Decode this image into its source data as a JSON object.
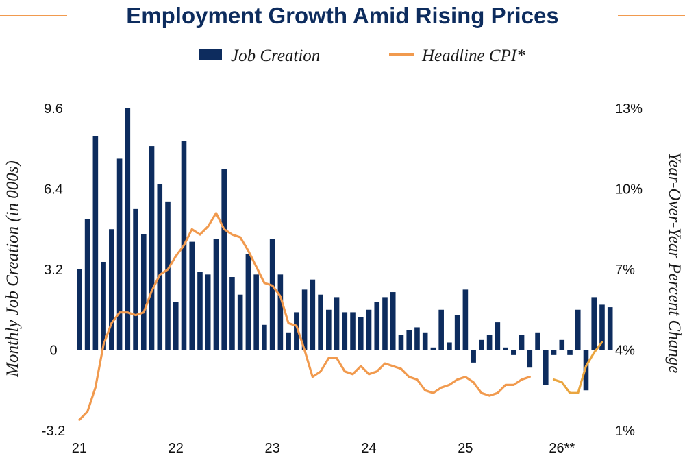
{
  "chart_data": {
    "type": "bar+line",
    "title": "Employment Growth Amid Rising Prices",
    "legend": {
      "placement": "top-center",
      "entries": [
        "Job Creation",
        "Headline CPI*"
      ]
    },
    "colors": {
      "bars": "#0d2c5e",
      "line": "#f19a4e",
      "line_forecast": "#eaa53f",
      "title": "#0d2c5e",
      "title_rule": "#f19a4e"
    },
    "ylabel_left": "Monthly Job Creation (in 000s)",
    "ylabel_right": "Year-Over-Year Percent Change",
    "y_left": {
      "ylim": [
        -3.2,
        9.6
      ],
      "ticks": [
        "9.6",
        "6.4",
        "3.2",
        "0",
        "-3.2"
      ],
      "tick_values": [
        9.6,
        6.4,
        3.2,
        0,
        -3.2
      ]
    },
    "y_right": {
      "ylim": [
        1,
        13
      ],
      "ticks": [
        "13%",
        "10%",
        "7%",
        "4%",
        "1%"
      ],
      "tick_values": [
        13,
        10,
        7,
        4,
        1
      ]
    },
    "x_ticks": {
      "labels": [
        "21",
        "22",
        "23",
        "24",
        "25",
        "26**"
      ],
      "month_index": [
        0,
        12,
        24,
        36,
        48,
        60
      ]
    },
    "grid": false,
    "job_creation": {
      "start_month_label": "21",
      "values": [
        3.2,
        5.2,
        8.5,
        3.5,
        4.8,
        7.6,
        9.6,
        5.6,
        4.6,
        8.1,
        6.6,
        5.9,
        1.9,
        8.3,
        4.3,
        3.1,
        3.0,
        4.4,
        7.2,
        2.9,
        2.2,
        3.8,
        3.0,
        1.0,
        4.4,
        3.0,
        0.7,
        1.5,
        2.4,
        2.8,
        2.2,
        1.6,
        2.1,
        1.5,
        1.5,
        1.3,
        1.6,
        1.9,
        2.1,
        2.3,
        0.6,
        0.8,
        0.9,
        0.7,
        0.1,
        1.6,
        0.3,
        1.4,
        2.4,
        -0.5,
        0.4,
        0.6,
        1.1,
        0.1,
        -0.2,
        0.6,
        -0.7,
        0.7,
        -1.4,
        -0.2,
        0.4,
        -0.2,
        1.6,
        -1.6,
        2.1,
        1.8,
        1.7
      ]
    },
    "headline_cpi": {
      "actual": [
        1.4,
        1.7,
        2.6,
        4.2,
        5.0,
        5.4,
        5.4,
        5.3,
        5.4,
        6.2,
        6.8,
        7.0,
        7.5,
        7.9,
        8.5,
        8.3,
        8.6,
        9.1,
        8.5,
        8.3,
        8.2,
        7.7,
        7.1,
        6.5,
        6.4,
        6.0,
        5.0,
        4.9,
        4.0,
        3.0,
        3.2,
        3.7,
        3.7,
        3.2,
        3.1,
        3.4,
        3.1,
        3.2,
        3.5,
        3.4,
        3.3,
        3.0,
        2.9,
        2.5,
        2.4,
        2.6,
        2.7,
        2.9,
        3.0,
        2.8,
        2.4,
        2.3,
        2.4,
        2.7,
        2.7,
        2.9,
        3.0
      ],
      "forecast_start_index": 59,
      "forecast": [
        2.9,
        2.8,
        2.4,
        2.4,
        3.4,
        3.9,
        4.3
      ]
    }
  }
}
